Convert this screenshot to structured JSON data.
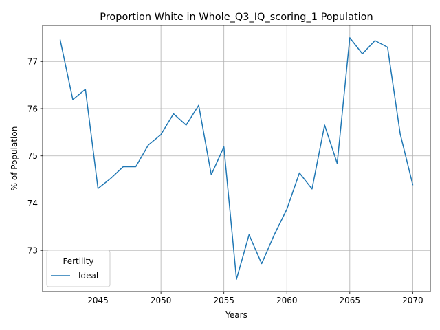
{
  "chart_data": {
    "type": "line",
    "title": "Proportion White in Whole_Q3_IQ_scoring_1 Population",
    "xlabel": "Years",
    "ylabel": "% of Population",
    "xlim": [
      2040.6,
      2071.4
    ],
    "ylim": [
      72.13,
      77.76
    ],
    "xticks": [
      2045,
      2050,
      2055,
      2060,
      2065,
      2070
    ],
    "yticks": [
      73,
      74,
      75,
      76,
      77
    ],
    "grid": true,
    "legend": {
      "title": "Fertility",
      "placement": "lower-left"
    },
    "series": [
      {
        "name": "Ideal",
        "color": "#1f77b4",
        "x": [
          2042,
          2043,
          2044,
          2045,
          2046,
          2047,
          2048,
          2049,
          2050,
          2051,
          2052,
          2053,
          2054,
          2055,
          2056,
          2057,
          2058,
          2059,
          2060,
          2061,
          2062,
          2063,
          2064,
          2065,
          2066,
          2067,
          2068,
          2069,
          2070
        ],
        "y": [
          77.45,
          76.19,
          76.41,
          74.31,
          74.52,
          74.77,
          74.77,
          75.23,
          75.45,
          75.89,
          75.65,
          76.07,
          74.6,
          75.19,
          72.39,
          73.33,
          72.72,
          73.33,
          73.87,
          74.64,
          74.3,
          75.65,
          74.84,
          77.5,
          77.16,
          77.44,
          77.3,
          75.47,
          74.39
        ]
      }
    ]
  }
}
